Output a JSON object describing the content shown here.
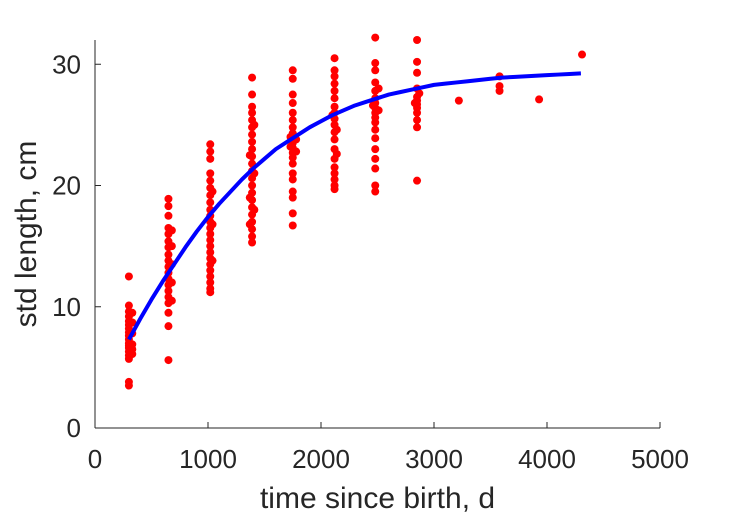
{
  "chart_data": {
    "type": "scatter",
    "title": "",
    "xlabel": "time since birth, d",
    "ylabel": "std length, cm",
    "xlim": [
      0,
      5000
    ],
    "ylim": [
      0,
      32
    ],
    "xticks": [
      0,
      1000,
      2000,
      3000,
      4000,
      5000
    ],
    "yticks": [
      0,
      10,
      20,
      30
    ],
    "xtick_labels": [
      "0",
      "1000",
      "2000",
      "3000",
      "4000",
      "5000"
    ],
    "ytick_labels": [
      "0",
      "10",
      "20",
      "30"
    ],
    "grid": false,
    "legend": "none",
    "colors": {
      "points": "#ff0000",
      "fit": "#0000ff",
      "axes": "#262626"
    },
    "series": [
      {
        "kind": "points",
        "color": "#ff0000",
        "points": [
          [
            300,
            12.5
          ],
          [
            300,
            10.1
          ],
          [
            300,
            9.6
          ],
          [
            300,
            9.2
          ],
          [
            300,
            8.8
          ],
          [
            300,
            8.5
          ],
          [
            300,
            8.2
          ],
          [
            300,
            7.9
          ],
          [
            300,
            7.6
          ],
          [
            300,
            7.3
          ],
          [
            300,
            7.0
          ],
          [
            300,
            6.8
          ],
          [
            300,
            6.6
          ],
          [
            300,
            6.3
          ],
          [
            300,
            6.0
          ],
          [
            300,
            5.7
          ],
          [
            300,
            3.8
          ],
          [
            300,
            3.5
          ],
          [
            330,
            9.5
          ],
          [
            330,
            8.7
          ],
          [
            330,
            7.8
          ],
          [
            330,
            6.9
          ],
          [
            330,
            6.5
          ],
          [
            330,
            6.1
          ],
          [
            650,
            18.9
          ],
          [
            650,
            18.3
          ],
          [
            650,
            17.5
          ],
          [
            650,
            16.5
          ],
          [
            650,
            16.0
          ],
          [
            650,
            15.4
          ],
          [
            650,
            14.9
          ],
          [
            650,
            14.3
          ],
          [
            650,
            13.8
          ],
          [
            650,
            13.3
          ],
          [
            650,
            12.8
          ],
          [
            650,
            12.3
          ],
          [
            650,
            11.8
          ],
          [
            650,
            11.3
          ],
          [
            650,
            10.8
          ],
          [
            650,
            10.3
          ],
          [
            650,
            9.5
          ],
          [
            650,
            8.4
          ],
          [
            650,
            5.6
          ],
          [
            680,
            16.3
          ],
          [
            680,
            15.0
          ],
          [
            680,
            13.5
          ],
          [
            680,
            12.0
          ],
          [
            680,
            10.5
          ],
          [
            1020,
            23.4
          ],
          [
            1020,
            22.8
          ],
          [
            1020,
            22.2
          ],
          [
            1020,
            21.0
          ],
          [
            1020,
            20.4
          ],
          [
            1020,
            19.8
          ],
          [
            1020,
            19.2
          ],
          [
            1020,
            18.6
          ],
          [
            1020,
            18.0
          ],
          [
            1020,
            17.5
          ],
          [
            1020,
            17.0
          ],
          [
            1020,
            16.5
          ],
          [
            1020,
            16.0
          ],
          [
            1020,
            15.5
          ],
          [
            1020,
            15.0
          ],
          [
            1020,
            14.5
          ],
          [
            1020,
            14.0
          ],
          [
            1020,
            13.5
          ],
          [
            1020,
            13.0
          ],
          [
            1020,
            12.5
          ],
          [
            1020,
            12.0
          ],
          [
            1020,
            11.5
          ],
          [
            1020,
            11.2
          ],
          [
            1040,
            19.5
          ],
          [
            1040,
            16.8
          ],
          [
            1040,
            13.8
          ],
          [
            1390,
            28.9
          ],
          [
            1390,
            27.5
          ],
          [
            1390,
            26.5
          ],
          [
            1390,
            26.0
          ],
          [
            1390,
            25.4
          ],
          [
            1390,
            24.8
          ],
          [
            1390,
            24.2
          ],
          [
            1390,
            23.6
          ],
          [
            1390,
            23.0
          ],
          [
            1390,
            22.4
          ],
          [
            1390,
            21.8
          ],
          [
            1390,
            21.2
          ],
          [
            1390,
            20.6
          ],
          [
            1390,
            20.0
          ],
          [
            1390,
            19.4
          ],
          [
            1390,
            18.8
          ],
          [
            1390,
            18.2
          ],
          [
            1390,
            17.6
          ],
          [
            1390,
            17.0
          ],
          [
            1390,
            16.4
          ],
          [
            1390,
            15.8
          ],
          [
            1390,
            15.3
          ],
          [
            1370,
            22.5
          ],
          [
            1370,
            19.0
          ],
          [
            1370,
            16.8
          ],
          [
            1410,
            25.0
          ],
          [
            1410,
            21.0
          ],
          [
            1410,
            18.0
          ],
          [
            1750,
            29.5
          ],
          [
            1750,
            28.8
          ],
          [
            1750,
            27.5
          ],
          [
            1750,
            26.8
          ],
          [
            1750,
            26.0
          ],
          [
            1750,
            25.4
          ],
          [
            1750,
            24.8
          ],
          [
            1750,
            24.3
          ],
          [
            1750,
            23.9
          ],
          [
            1750,
            23.5
          ],
          [
            1750,
            23.1
          ],
          [
            1750,
            22.7
          ],
          [
            1750,
            22.3
          ],
          [
            1750,
            21.8
          ],
          [
            1750,
            21.0
          ],
          [
            1750,
            20.5
          ],
          [
            1750,
            19.5
          ],
          [
            1750,
            19.0
          ],
          [
            1750,
            17.7
          ],
          [
            1750,
            16.7
          ],
          [
            1780,
            23.8
          ],
          [
            1780,
            22.8
          ],
          [
            1730,
            24.0
          ],
          [
            1730,
            23.2
          ],
          [
            2120,
            30.5
          ],
          [
            2120,
            29.5
          ],
          [
            2120,
            29.0
          ],
          [
            2120,
            28.4
          ],
          [
            2120,
            27.8
          ],
          [
            2120,
            27.2
          ],
          [
            2120,
            26.5
          ],
          [
            2120,
            26.0
          ],
          [
            2120,
            25.5
          ],
          [
            2120,
            25.0
          ],
          [
            2120,
            24.4
          ],
          [
            2120,
            23.8
          ],
          [
            2120,
            23.0
          ],
          [
            2120,
            22.2
          ],
          [
            2120,
            21.5
          ],
          [
            2120,
            21.0
          ],
          [
            2120,
            20.5
          ],
          [
            2120,
            20.0
          ],
          [
            2120,
            19.7
          ],
          [
            2140,
            24.6
          ],
          [
            2140,
            22.6
          ],
          [
            2100,
            25.8
          ],
          [
            2480,
            32.2
          ],
          [
            2480,
            30.1
          ],
          [
            2480,
            29.5
          ],
          [
            2480,
            28.5
          ],
          [
            2480,
            27.8
          ],
          [
            2480,
            27.2
          ],
          [
            2480,
            26.8
          ],
          [
            2480,
            26.4
          ],
          [
            2480,
            26.0
          ],
          [
            2480,
            25.6
          ],
          [
            2480,
            25.2
          ],
          [
            2480,
            24.6
          ],
          [
            2480,
            23.9
          ],
          [
            2480,
            23.0
          ],
          [
            2480,
            22.2
          ],
          [
            2480,
            21.4
          ],
          [
            2480,
            20.0
          ],
          [
            2480,
            19.5
          ],
          [
            2510,
            28.0
          ],
          [
            2510,
            26.2
          ],
          [
            2460,
            26.6
          ],
          [
            2850,
            32.0
          ],
          [
            2850,
            30.2
          ],
          [
            2850,
            29.3
          ],
          [
            2850,
            28.0
          ],
          [
            2850,
            27.3
          ],
          [
            2850,
            27.0
          ],
          [
            2850,
            26.7
          ],
          [
            2850,
            26.4
          ],
          [
            2850,
            26.0
          ],
          [
            2850,
            25.4
          ],
          [
            2850,
            24.8
          ],
          [
            2850,
            20.4
          ],
          [
            2870,
            27.6
          ],
          [
            2830,
            26.8
          ],
          [
            3220,
            27.0
          ],
          [
            3580,
            29.0
          ],
          [
            3580,
            28.2
          ],
          [
            3580,
            27.8
          ],
          [
            3930,
            27.1
          ],
          [
            4310,
            30.8
          ]
        ]
      },
      {
        "kind": "curve",
        "color": "#0000ff",
        "x": [
          300,
          400,
          500,
          600,
          700,
          800,
          900,
          1000,
          1100,
          1200,
          1300,
          1400,
          1500,
          1600,
          1700,
          1800,
          1900,
          2000,
          2100,
          2200,
          2300,
          2400,
          2500,
          2600,
          2700,
          2800,
          2900,
          3000,
          3100,
          3200,
          3300,
          3400,
          3500,
          3600,
          3700,
          3800,
          3900,
          4000,
          4100,
          4200,
          4300
        ],
        "y": [
          7.3,
          9.0,
          10.6,
          12.1,
          13.5,
          14.9,
          16.2,
          17.4,
          18.5,
          19.5,
          20.5,
          21.4,
          22.2,
          23.0,
          23.6,
          24.2,
          24.8,
          25.3,
          25.8,
          26.2,
          26.6,
          26.9,
          27.2,
          27.5,
          27.7,
          27.9,
          28.1,
          28.3,
          28.4,
          28.5,
          28.6,
          28.7,
          28.8,
          28.9,
          28.95,
          29.0,
          29.05,
          29.1,
          29.15,
          29.2,
          29.25
        ]
      }
    ]
  }
}
